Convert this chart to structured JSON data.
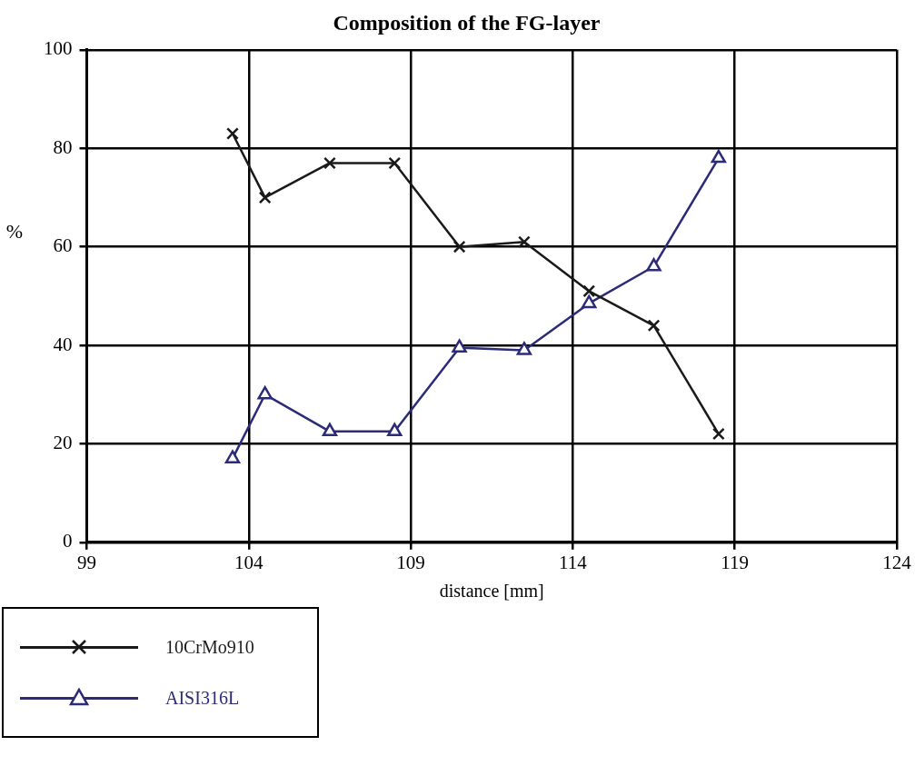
{
  "chart_data": {
    "type": "line",
    "title": "Composition of the FG-layer",
    "xlabel": "distance [mm]",
    "ylabel": "%",
    "x": [
      103.5,
      104.5,
      106.5,
      108.5,
      110.5,
      112.5,
      114.5,
      116.5,
      118.5
    ],
    "series": [
      {
        "name": "10CrMo910",
        "color": "#1a1a1a",
        "marker": "cross",
        "values": [
          83,
          70,
          77,
          77,
          60,
          61,
          51,
          44,
          22
        ]
      },
      {
        "name": "AISI316L",
        "color": "#2b2b7a",
        "marker": "triangle",
        "values": [
          17,
          30,
          22.5,
          22.5,
          39.5,
          39,
          48.5,
          56,
          78
        ]
      }
    ],
    "xlim": [
      99,
      124
    ],
    "xticks": [
      99,
      104,
      109,
      114,
      119,
      124
    ],
    "ylim": [
      0,
      100
    ],
    "yticks": [
      0,
      20,
      40,
      60,
      80,
      100
    ],
    "grid": true,
    "legend": "bottom left",
    "line_style": "solid"
  }
}
